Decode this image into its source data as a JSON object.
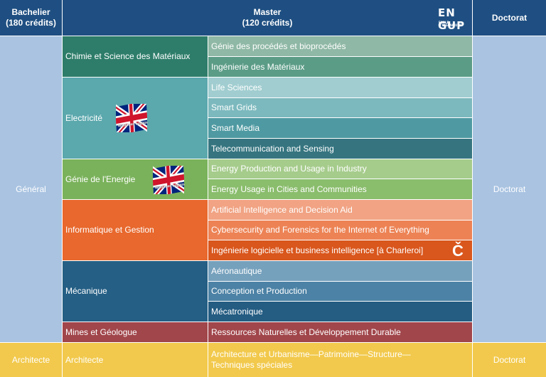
{
  "header": {
    "bachelier": "Bachelier\n(180 crédits)",
    "master": "Master\n(120 crédits)",
    "doctorat": "Doctorat",
    "logo_top": "EN G",
    "logo_bottom": "UP",
    "logo_small": "ECOLE D'INGENIEURS"
  },
  "general": {
    "label": "Général",
    "doctorat": "Doctorat"
  },
  "architecte": {
    "label": "Architecte",
    "program": "Architecte",
    "master": "Architecture et Urbanisme—Patrimoine—Structure—\nTechniques spéciales",
    "doctorat": "Doctorat"
  },
  "programs": [
    {
      "name": "Chimie et Science des Matériaux",
      "color": "#2e7d6a",
      "masters": [
        {
          "name": "Génie des procédés et bioprocédés",
          "color": "#8fb8a6"
        },
        {
          "name": "Ingénierie des Matériaux",
          "color": "#5b9c87"
        }
      ]
    },
    {
      "name": "Electricité",
      "color": "#5ba8ad",
      "flag_caption": "Master en anglais",
      "masters": [
        {
          "name": "Life Sciences",
          "color": "#a1cdd0"
        },
        {
          "name": "Smart Grids",
          "color": "#7cb9be"
        },
        {
          "name": "Smart Media",
          "color": "#4f9aa2"
        },
        {
          "name": "Telecommunication and Sensing",
          "color": "#367580"
        }
      ]
    },
    {
      "name": "Génie de l'Energie",
      "color": "#7ab25b",
      "flag_caption": "Master en anglais",
      "masters": [
        {
          "name": "Energy Production and Usage in Industry",
          "color": "#a6cc8c"
        },
        {
          "name": "Energy Usage in Cities and Communities",
          "color": "#8abd6c"
        }
      ]
    },
    {
      "name": "Informatique et Gestion",
      "color": "#e8682d",
      "masters": [
        {
          "name": "Artificial Intelligence and Decision Aid",
          "color": "#f1a383"
        },
        {
          "name": "Cybersecurity and Forensics for the Internet of Everything",
          "color": "#ed8355"
        },
        {
          "name": "Ingénierie logicielle et business intelligence [à Charleroi]",
          "color": "#d9561c",
          "mark": "Č"
        }
      ]
    },
    {
      "name": "Mécanique",
      "color": "#255f85",
      "masters": [
        {
          "name": "Aéronautique",
          "color": "#76a1bd"
        },
        {
          "name": "Conception et Production",
          "color": "#4c82a5"
        },
        {
          "name": "Mécatronique",
          "color": "#245c82"
        }
      ]
    },
    {
      "name": "Mines et Géologue",
      "color": "#a1464b",
      "masters": [
        {
          "name": "Ressources Naturelles et Développement Durable",
          "color": "#a1464b"
        }
      ]
    }
  ],
  "colors": {
    "header": "#1f4f82",
    "general_column": "#a9c3e1",
    "architecte": "#f2c94c"
  }
}
